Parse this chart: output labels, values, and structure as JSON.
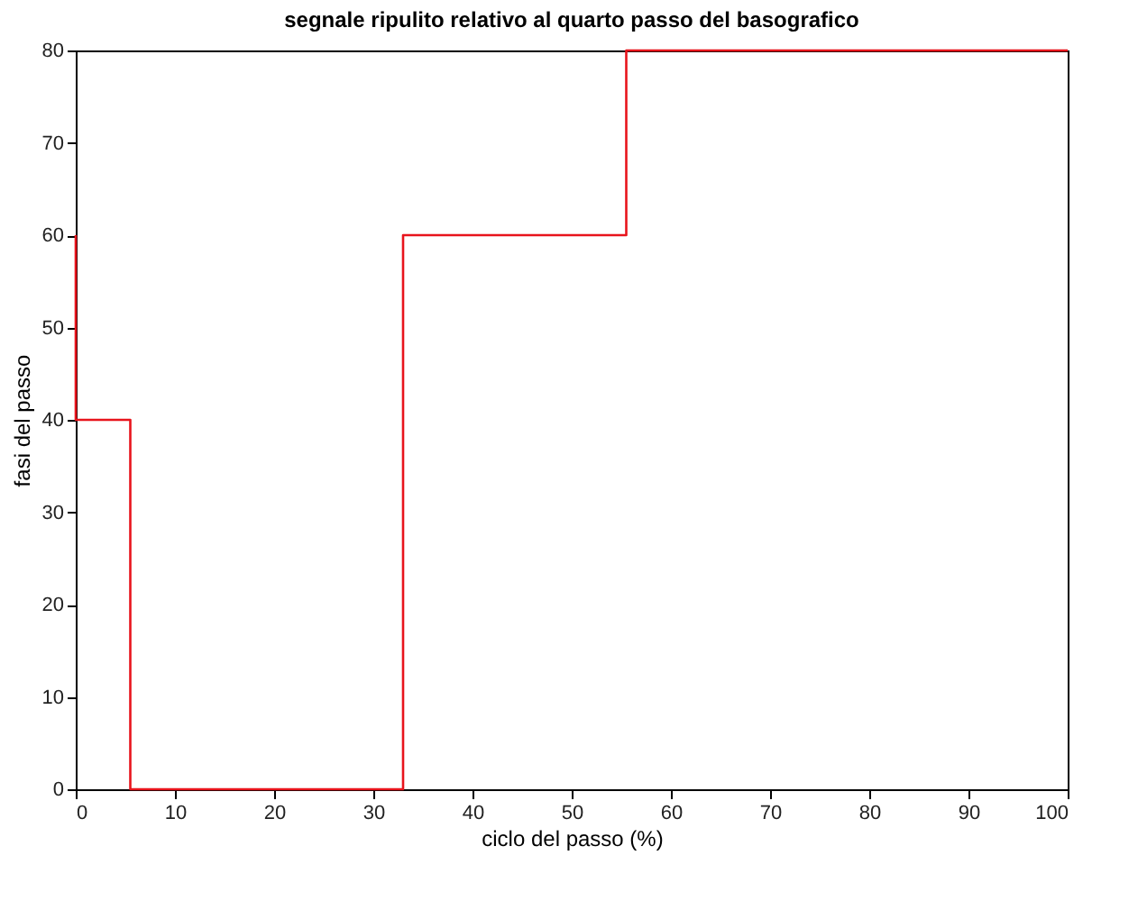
{
  "chart_data": {
    "type": "step",
    "title": "segnale ripulito relativo al quarto passo del basografico",
    "xlabel": "ciclo del passo (%)",
    "ylabel": "fasi del passo",
    "x": [
      0,
      0,
      5.5,
      33,
      55.5,
      100
    ],
    "series": [
      {
        "color": "#e8141c",
        "values": [
          60,
          40,
          0,
          60,
          80,
          80
        ]
      }
    ],
    "xlim": [
      0,
      100
    ],
    "xticks": [
      0,
      10,
      20,
      30,
      40,
      50,
      60,
      70,
      80,
      90,
      100
    ],
    "ylim": [
      0,
      80
    ],
    "yticks": [
      0,
      10,
      20,
      30,
      40,
      50,
      60,
      70,
      80
    ],
    "grid": false
  }
}
